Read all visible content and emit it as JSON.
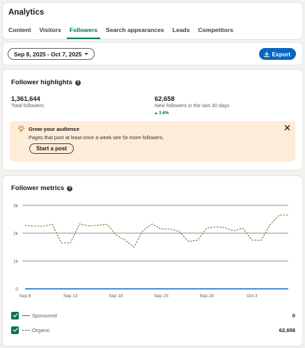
{
  "header": {
    "title": "Analytics",
    "tabs": [
      {
        "label": "Content",
        "active": false
      },
      {
        "label": "Visitors",
        "active": false
      },
      {
        "label": "Followers",
        "active": true
      },
      {
        "label": "Search appearances",
        "active": false
      },
      {
        "label": "Leads",
        "active": false
      },
      {
        "label": "Competitors",
        "active": false
      }
    ]
  },
  "filters": {
    "date_range": "Sep 8, 2025 - Oct 7, 2025",
    "export_label": "Export"
  },
  "highlights": {
    "title": "Follower highlights",
    "total": {
      "value": "1,361,644",
      "label": "Total followers"
    },
    "new": {
      "value": "62,658",
      "label": "New followers in the last 30 days",
      "change": "3.6%"
    },
    "tip": {
      "title": "Grow your audience",
      "text": "Pages that post at least once a week see 5x more followers.",
      "button": "Start a post"
    }
  },
  "metrics": {
    "title": "Follower metrics",
    "legend": [
      {
        "name": "Sponsored",
        "value": "0",
        "color": "#0a66c2"
      },
      {
        "name": "Organic",
        "value": "62,658",
        "color": "#5f7a2a"
      }
    ]
  },
  "colors": {
    "accent_green": "#01754f",
    "primary_blue": "#0a66c2",
    "tip_background": "#fdecd8"
  },
  "icons": {
    "help": "question-circle-icon",
    "export": "download-icon",
    "tip": "lightbulb-icon",
    "close": "close-icon",
    "check": "checkmark-icon"
  },
  "chart_data": {
    "type": "line",
    "x": [
      "Sep 8",
      "Sep 9",
      "Sep 10",
      "Sep 11",
      "Sep 12",
      "Sep 13",
      "Sep 14",
      "Sep 15",
      "Sep 16",
      "Sep 17",
      "Sep 18",
      "Sep 19",
      "Sep 20",
      "Sep 21",
      "Sep 22",
      "Sep 23",
      "Sep 24",
      "Sep 25",
      "Sep 26",
      "Sep 27",
      "Sep 28",
      "Sep 29",
      "Sep 30",
      "Oct 1",
      "Oct 2",
      "Oct 3",
      "Oct 4",
      "Oct 5",
      "Oct 6",
      "Oct 7"
    ],
    "x_tick_labels": [
      "Sep 8",
      "Sep 13",
      "Sep 18",
      "Sep 23",
      "Sep 28",
      "Oct 3"
    ],
    "series": [
      {
        "name": "Sponsored",
        "style": "solid",
        "color": "#0a66c2",
        "values": [
          0,
          0,
          0,
          0,
          0,
          0,
          0,
          0,
          0,
          0,
          0,
          0,
          0,
          0,
          0,
          0,
          0,
          0,
          0,
          0,
          0,
          0,
          0,
          0,
          0,
          0,
          0,
          0,
          0,
          0
        ]
      },
      {
        "name": "Organic",
        "style": "dashed",
        "color": "#5f7a2a",
        "values": [
          2280,
          2250,
          2250,
          2320,
          1650,
          1650,
          2330,
          2260,
          2280,
          2320,
          1950,
          1750,
          1500,
          2100,
          2330,
          2150,
          2150,
          2060,
          1700,
          1750,
          2180,
          2230,
          2200,
          2080,
          2180,
          1750,
          1740,
          2310,
          2650,
          2650
        ]
      }
    ],
    "y_ticks": [
      {
        "value": 0,
        "label": "0"
      },
      {
        "value": 1000,
        "label": "1k"
      },
      {
        "value": 2000,
        "label": "2k"
      },
      {
        "value": 3000,
        "label": "3k"
      }
    ],
    "ylim": [
      0,
      3000
    ],
    "grid": true
  }
}
